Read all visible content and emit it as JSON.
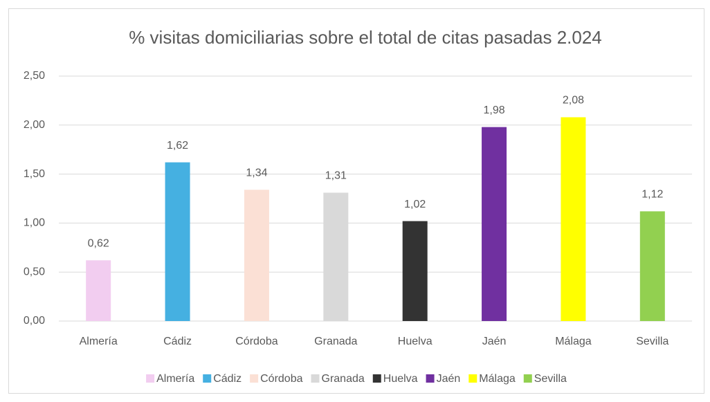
{
  "chart_data": {
    "type": "bar",
    "title": "% visitas domiciliarias sobre el total de citas pasadas 2.024",
    "categories": [
      "Almería",
      "Cádiz",
      "Córdoba",
      "Granada",
      "Huelva",
      "Jaén",
      "Málaga",
      "Sevilla"
    ],
    "values": [
      0.62,
      1.62,
      1.34,
      1.31,
      1.02,
      1.98,
      2.08,
      1.12
    ],
    "value_labels": [
      "0,62",
      "1,62",
      "1,34",
      "1,31",
      "1,02",
      "1,98",
      "2,08",
      "1,12"
    ],
    "colors": [
      "#f2cdf0",
      "#45b0e1",
      "#fbe0d5",
      "#d9d9d9",
      "#333333",
      "#7030a0",
      "#ffff00",
      "#92d050"
    ],
    "ylim": [
      0,
      2.5
    ],
    "yticks": [
      {
        "value": 0,
        "label": "0,00"
      },
      {
        "value": 0.5,
        "label": "0,50"
      },
      {
        "value": 1,
        "label": "1,00"
      },
      {
        "value": 1.5,
        "label": "1,50"
      },
      {
        "value": 2,
        "label": "2,00"
      },
      {
        "value": 2.5,
        "label": "2,50"
      }
    ],
    "grid": true,
    "legend": "bottom"
  }
}
